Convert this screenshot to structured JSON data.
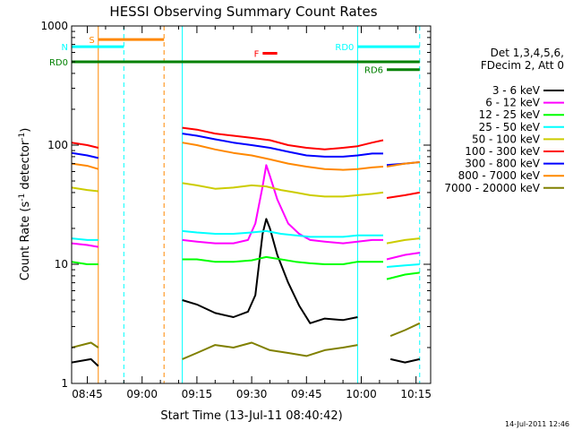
{
  "chart_data": {
    "type": "line",
    "title": "HESSI Observing Summary Count Rates",
    "xlabel": "Start Time (13-Jul-11 08:40:42)",
    "ylabel": "Count Rate (s",
    "ylabel_sup1": "-1",
    "ylabel_mid": " detector",
    "ylabel_sup2": "-1",
    "ylabel_end": ")",
    "footer_date": "14-Jul-2011 12:46",
    "y_scale": "log",
    "ylim": [
      1,
      1000
    ],
    "xlim": [
      "08:40:42",
      "10:19:00"
    ],
    "y_ticks": [
      {
        "value": 1,
        "label": "1"
      },
      {
        "value": 10,
        "label": "10"
      },
      {
        "value": 100,
        "label": "100"
      },
      {
        "value": 1000,
        "label": "1000"
      }
    ],
    "x_ticks": [
      {
        "value": "08:45",
        "label": "08:45"
      },
      {
        "value": "09:00",
        "label": "09:00"
      },
      {
        "value": "09:15",
        "label": "09:15"
      },
      {
        "value": "09:30",
        "label": "09:30"
      },
      {
        "value": "09:45",
        "label": "09:45"
      },
      {
        "value": "10:00",
        "label": "10:00"
      },
      {
        "value": "10:15",
        "label": "10:15"
      }
    ],
    "legend_placement": "right",
    "legend_header": [
      "Det 1,3,4,5,6,",
      "FDecim 2, Att 0"
    ],
    "series": [
      {
        "name": "3 - 6 keV",
        "color": "#000000",
        "segments": [
          [
            [
              "08:40:42",
              1.5
            ],
            [
              "08:46",
              1.6
            ],
            [
              "08:48",
              1.4
            ]
          ],
          [
            [
              "09:11",
              5
            ],
            [
              "09:15",
              4.6
            ],
            [
              "09:20",
              3.9
            ],
            [
              "09:25",
              3.6
            ],
            [
              "09:29",
              4.0
            ],
            [
              "09:31",
              5.5
            ],
            [
              "09:33",
              18
            ],
            [
              "09:34",
              24
            ],
            [
              "09:35",
              20
            ],
            [
              "09:37",
              12
            ],
            [
              "09:40",
              7
            ],
            [
              "09:43",
              4.5
            ],
            [
              "09:46",
              3.2
            ],
            [
              "09:50",
              3.5
            ],
            [
              "09:55",
              3.4
            ],
            [
              "09:59",
              3.6
            ]
          ],
          [
            [
              "10:08",
              1.6
            ],
            [
              "10:12",
              1.5
            ],
            [
              "10:16",
              1.6
            ]
          ]
        ]
      },
      {
        "name": "6 - 12 keV",
        "color": "#ff00ff",
        "segments": [
          [
            [
              "08:40:42",
              15
            ],
            [
              "08:45",
              14.5
            ],
            [
              "08:48",
              14
            ]
          ],
          [
            [
              "09:11",
              16
            ],
            [
              "09:15",
              15.5
            ],
            [
              "09:20",
              15
            ],
            [
              "09:25",
              15
            ],
            [
              "09:29",
              16
            ],
            [
              "09:31",
              22
            ],
            [
              "09:33",
              45
            ],
            [
              "09:34",
              68
            ],
            [
              "09:35",
              55
            ],
            [
              "09:37",
              35
            ],
            [
              "09:40",
              22
            ],
            [
              "09:43",
              18
            ],
            [
              "09:46",
              16
            ],
            [
              "09:50",
              15.5
            ],
            [
              "09:55",
              15
            ],
            [
              "09:59",
              15.5
            ],
            [
              "10:03",
              16
            ],
            [
              "10:06",
              16
            ]
          ],
          [
            [
              "10:07",
              11
            ],
            [
              "10:12",
              12
            ],
            [
              "10:16",
              12.5
            ]
          ]
        ]
      },
      {
        "name": "12 - 25 keV",
        "color": "#00ff00",
        "segments": [
          [
            [
              "08:40:42",
              10.5
            ],
            [
              "08:45",
              10
            ],
            [
              "08:48",
              10
            ]
          ],
          [
            [
              "09:11",
              11
            ],
            [
              "09:15",
              11
            ],
            [
              "09:20",
              10.5
            ],
            [
              "09:25",
              10.5
            ],
            [
              "09:30",
              10.8
            ],
            [
              "09:34",
              11.5
            ],
            [
              "09:38",
              11
            ],
            [
              "09:42",
              10.5
            ],
            [
              "09:46",
              10.2
            ],
            [
              "09:50",
              10
            ],
            [
              "09:55",
              10
            ],
            [
              "09:59",
              10.5
            ],
            [
              "10:03",
              10.5
            ],
            [
              "10:06",
              10.5
            ]
          ],
          [
            [
              "10:07",
              7.5
            ],
            [
              "10:12",
              8.2
            ],
            [
              "10:16",
              8.5
            ]
          ]
        ]
      },
      {
        "name": "25 - 50 keV",
        "color": "#00ffff",
        "segments": [
          [
            [
              "08:40:42",
              16.5
            ],
            [
              "08:45",
              16
            ],
            [
              "08:48",
              16
            ]
          ],
          [
            [
              "09:11",
              19
            ],
            [
              "09:15",
              18.5
            ],
            [
              "09:20",
              18
            ],
            [
              "09:25",
              18
            ],
            [
              "09:30",
              18.5
            ],
            [
              "09:34",
              19
            ],
            [
              "09:38",
              18
            ],
            [
              "09:42",
              17.5
            ],
            [
              "09:46",
              17
            ],
            [
              "09:50",
              17
            ],
            [
              "09:55",
              17
            ],
            [
              "09:59",
              17.5
            ],
            [
              "10:03",
              17.5
            ],
            [
              "10:06",
              17.5
            ]
          ],
          [
            [
              "10:07",
              9.5
            ],
            [
              "10:12",
              9.8
            ],
            [
              "10:16",
              10
            ]
          ]
        ]
      },
      {
        "name": "50 - 100 keV",
        "color": "#cccc00",
        "segments": [
          [
            [
              "08:40:42",
              44
            ],
            [
              "08:45",
              42
            ],
            [
              "08:48",
              41
            ]
          ],
          [
            [
              "09:11",
              48
            ],
            [
              "09:15",
              46
            ],
            [
              "09:20",
              43
            ],
            [
              "09:25",
              44
            ],
            [
              "09:30",
              46
            ],
            [
              "09:34",
              45
            ],
            [
              "09:38",
              42
            ],
            [
              "09:42",
              40
            ],
            [
              "09:46",
              38
            ],
            [
              "09:50",
              37
            ],
            [
              "09:55",
              37
            ],
            [
              "09:59",
              38
            ],
            [
              "10:03",
              39
            ],
            [
              "10:06",
              40
            ]
          ],
          [
            [
              "10:07",
              15
            ],
            [
              "10:12",
              16
            ],
            [
              "10:16",
              16.5
            ]
          ]
        ]
      },
      {
        "name": "100 - 300 keV",
        "color": "#ff0000",
        "segments": [
          [
            [
              "08:40:42",
              105
            ],
            [
              "08:45",
              100
            ],
            [
              "08:48",
              95
            ]
          ],
          [
            [
              "09:11",
              140
            ],
            [
              "09:15",
              135
            ],
            [
              "09:20",
              125
            ],
            [
              "09:25",
              120
            ],
            [
              "09:30",
              115
            ],
            [
              "09:35",
              110
            ],
            [
              "09:40",
              100
            ],
            [
              "09:45",
              95
            ],
            [
              "09:50",
              92
            ],
            [
              "09:55",
              95
            ],
            [
              "09:59",
              98
            ],
            [
              "10:03",
              105
            ],
            [
              "10:06",
              110
            ]
          ],
          [
            [
              "10:07",
              36
            ],
            [
              "10:12",
              38
            ],
            [
              "10:16",
              40
            ]
          ]
        ]
      },
      {
        "name": "300 - 800 keV",
        "color": "#0000ff",
        "segments": [
          [
            [
              "08:40:42",
              86
            ],
            [
              "08:45",
              82
            ],
            [
              "08:48",
              78
            ]
          ],
          [
            [
              "09:11",
              125
            ],
            [
              "09:15",
              120
            ],
            [
              "09:20",
              112
            ],
            [
              "09:25",
              105
            ],
            [
              "09:30",
              100
            ],
            [
              "09:35",
              95
            ],
            [
              "09:40",
              88
            ],
            [
              "09:45",
              82
            ],
            [
              "09:50",
              80
            ],
            [
              "09:55",
              80
            ],
            [
              "09:59",
              82
            ],
            [
              "10:03",
              85
            ],
            [
              "10:06",
              85
            ]
          ],
          [
            [
              "10:07",
              68
            ],
            [
              "10:12",
              70
            ],
            [
              "10:16",
              72
            ]
          ]
        ]
      },
      {
        "name": "800 - 7000 keV",
        "color": "#ff8800",
        "segments": [
          [
            [
              "08:40:42",
              70
            ],
            [
              "08:45",
              67
            ],
            [
              "08:48",
              63
            ]
          ],
          [
            [
              "09:11",
              105
            ],
            [
              "09:15",
              100
            ],
            [
              "09:20",
              92
            ],
            [
              "09:25",
              86
            ],
            [
              "09:30",
              82
            ],
            [
              "09:35",
              76
            ],
            [
              "09:40",
              70
            ],
            [
              "09:45",
              66
            ],
            [
              "09:50",
              63
            ],
            [
              "09:55",
              62
            ],
            [
              "09:59",
              63
            ],
            [
              "10:03",
              65
            ],
            [
              "10:06",
              66
            ]
          ],
          [
            [
              "10:07",
              66
            ],
            [
              "10:12",
              70
            ],
            [
              "10:16",
              72
            ]
          ]
        ]
      },
      {
        "name": "7000 - 20000 keV",
        "color": "#808000",
        "segments": [
          [
            [
              "08:40:42",
              2.0
            ],
            [
              "08:46",
              2.2
            ],
            [
              "08:48",
              2.0
            ]
          ],
          [
            [
              "09:11",
              1.6
            ],
            [
              "09:15",
              1.8
            ],
            [
              "09:20",
              2.1
            ],
            [
              "09:25",
              2.0
            ],
            [
              "09:30",
              2.2
            ],
            [
              "09:35",
              1.9
            ],
            [
              "09:40",
              1.8
            ],
            [
              "09:45",
              1.7
            ],
            [
              "09:50",
              1.9
            ],
            [
              "09:55",
              2.0
            ],
            [
              "09:59",
              2.1
            ]
          ],
          [
            [
              "10:08",
              2.5
            ],
            [
              "10:12",
              2.8
            ],
            [
              "10:16",
              3.2
            ]
          ]
        ]
      }
    ],
    "state_bars": [
      {
        "label": "S",
        "color": "#ff8800",
        "start": "08:48",
        "end": "09:06",
        "y": 770
      },
      {
        "label": "N",
        "color": "#00ffff",
        "start": "08:40:42",
        "end": "08:55",
        "y": 670
      },
      {
        "label": "F",
        "color": "#ff0000",
        "start": "09:33",
        "end": "09:37",
        "y": 590
      },
      {
        "label": "RD0",
        "color": "#00ffff",
        "start": "09:59",
        "end": "10:16",
        "y": 670
      },
      {
        "label": "RD0",
        "color": "#008000",
        "start": "08:40:42",
        "end": "10:16",
        "y": 500
      },
      {
        "label": "RD6",
        "color": "#008000",
        "start": "10:07",
        "end": "10:16",
        "y": 430
      }
    ],
    "vertical_markers": [
      {
        "time": "08:48",
        "color": "#ff8800",
        "style": "solid"
      },
      {
        "time": "08:55",
        "color": "#00ffff",
        "style": "dashed"
      },
      {
        "time": "09:06",
        "color": "#ff8800",
        "style": "dashed"
      },
      {
        "time": "09:11",
        "color": "#00ffff",
        "style": "solid"
      },
      {
        "time": "09:59",
        "color": "#00ffff",
        "style": "solid"
      },
      {
        "time": "10:16",
        "color": "#00ffff",
        "style": "dashed"
      }
    ]
  }
}
